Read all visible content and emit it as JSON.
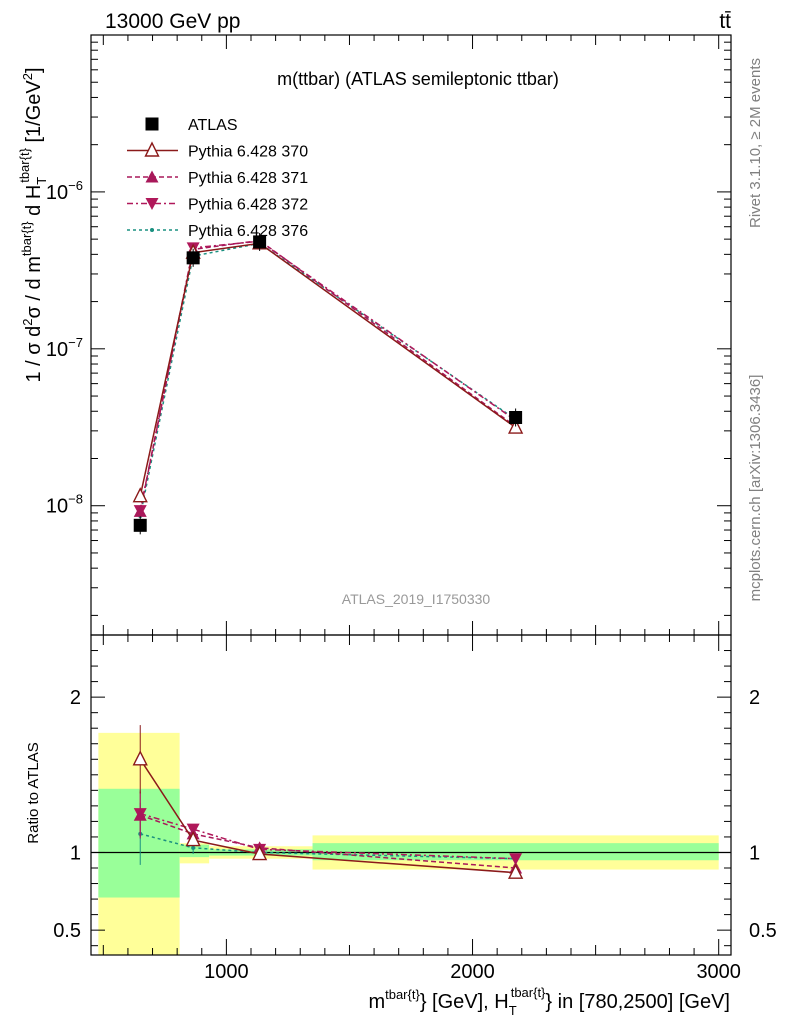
{
  "header": {
    "left": "13000 GeV pp",
    "right": "tt̄"
  },
  "side_labels": {
    "rivet": "Rivet 3.1.10, ≥ 2M events",
    "mcplots": "mcplots.cern.ch [arXiv:1306.3436]"
  },
  "analysis_id": "ATLAS_2019_I1750330",
  "chart_data": [
    {
      "type": "line",
      "title": "m(ttbar) (ATLAS semileptonic ttbar)",
      "ylabel": "1 / σ d²σ / d m^{tbar{t}} d H_T^{tbar{t}} [1/GeV²]",
      "yscale": "log",
      "ylim": [
        1.5e-09,
        1e-05
      ],
      "xlim": [
        450,
        3050
      ],
      "yticks": [
        {
          "value": 1e-08,
          "base": "10",
          "exp": "−8"
        },
        {
          "value": 1e-07,
          "base": "10",
          "exp": "−7"
        },
        {
          "value": 1e-06,
          "base": "10",
          "exp": "−6"
        }
      ],
      "legend_position": "top-left",
      "x": [
        650,
        865,
        1135,
        2175
      ],
      "series": [
        {
          "name": "ATLAS",
          "color": "#000000",
          "marker": "square",
          "dash": "",
          "values": [
            7.5e-09,
            3.8e-07,
            4.8e-07,
            3.65e-08
          ]
        },
        {
          "name": "Pythia 6.428 370",
          "color": "#8b1a1a",
          "marker": "triangle-open",
          "dash": "",
          "values": [
            1.15e-08,
            4.1e-07,
            4.7e-07,
            3.15e-08
          ]
        },
        {
          "name": "Pythia 6.428 371",
          "color": "#a8185a",
          "marker": "triangle",
          "dash": "5,3",
          "values": [
            9.2e-09,
            4.3e-07,
            4.9e-07,
            3.2e-08
          ]
        },
        {
          "name": "Pythia 6.428 372",
          "color": "#b0185a",
          "marker": "triangle-down",
          "dash": "6,3,2,3",
          "values": [
            9.3e-09,
            4.4e-07,
            4.85e-07,
            3.5e-08
          ]
        },
        {
          "name": "Pythia 6.428 376",
          "color": "#1a9080",
          "marker": "dot",
          "dash": "3,3",
          "values": [
            8.6e-09,
            3.9e-07,
            4.7e-07,
            3.55e-08
          ]
        }
      ]
    },
    {
      "type": "line",
      "ylabel": "Ratio to ATLAS",
      "xlabel": "m^{tbar{t}} [GeV], H_T^{tbar{t}} in [780,2500] [GeV]",
      "ylim": [
        0.34,
        2.4
      ],
      "xlim": [
        450,
        3050
      ],
      "yticks": [
        {
          "value": 0.5,
          "label": "0.5"
        },
        {
          "value": 1,
          "label": "1"
        },
        {
          "value": 2,
          "label": "2"
        }
      ],
      "xticks": [
        {
          "value": 1000,
          "label": "1000"
        },
        {
          "value": 2000,
          "label": "2000"
        },
        {
          "value": 3000,
          "label": "3000"
        }
      ],
      "bands": [
        {
          "x0": 480,
          "x1": 810,
          "y0": 0.7,
          "y1": 1.42,
          "inner_y0": 0.71,
          "inner_y1": 1.41,
          "outer_y0": 0.34,
          "outer_y1": 1.77
        },
        {
          "x0": 810,
          "x1": 930,
          "inner_y0": 0.97,
          "inner_y1": 1.05,
          "outer_y0": 0.93,
          "outer_y1": 1.06
        },
        {
          "x0": 930,
          "x1": 1350,
          "inner_y0": 0.98,
          "inner_y1": 1.02,
          "outer_y0": 0.96,
          "outer_y1": 1.04
        },
        {
          "x0": 1350,
          "x1": 3000,
          "inner_y0": 0.95,
          "inner_y1": 1.06,
          "outer_y0": 0.89,
          "outer_y1": 1.11
        }
      ],
      "series": [
        {
          "name": "Pythia 6.428 370",
          "values": [
            1.6,
            1.08,
            0.99,
            0.87
          ],
          "err": [
            0.22,
            0.03,
            0.02,
            0.02
          ]
        },
        {
          "name": "Pythia 6.428 371",
          "values": [
            1.24,
            1.12,
            1.03,
            0.9
          ],
          "err": [
            0.15,
            0.03,
            0.02,
            0.02
          ]
        },
        {
          "name": "Pythia 6.428 372",
          "values": [
            1.25,
            1.15,
            1.02,
            0.96
          ],
          "err": [
            0.15,
            0.03,
            0.02,
            0.02
          ]
        },
        {
          "name": "Pythia 6.428 376",
          "values": [
            1.12,
            1.03,
            1.0,
            0.96
          ],
          "err": [
            0.2,
            0.04,
            0.02,
            0.02
          ]
        }
      ]
    }
  ]
}
